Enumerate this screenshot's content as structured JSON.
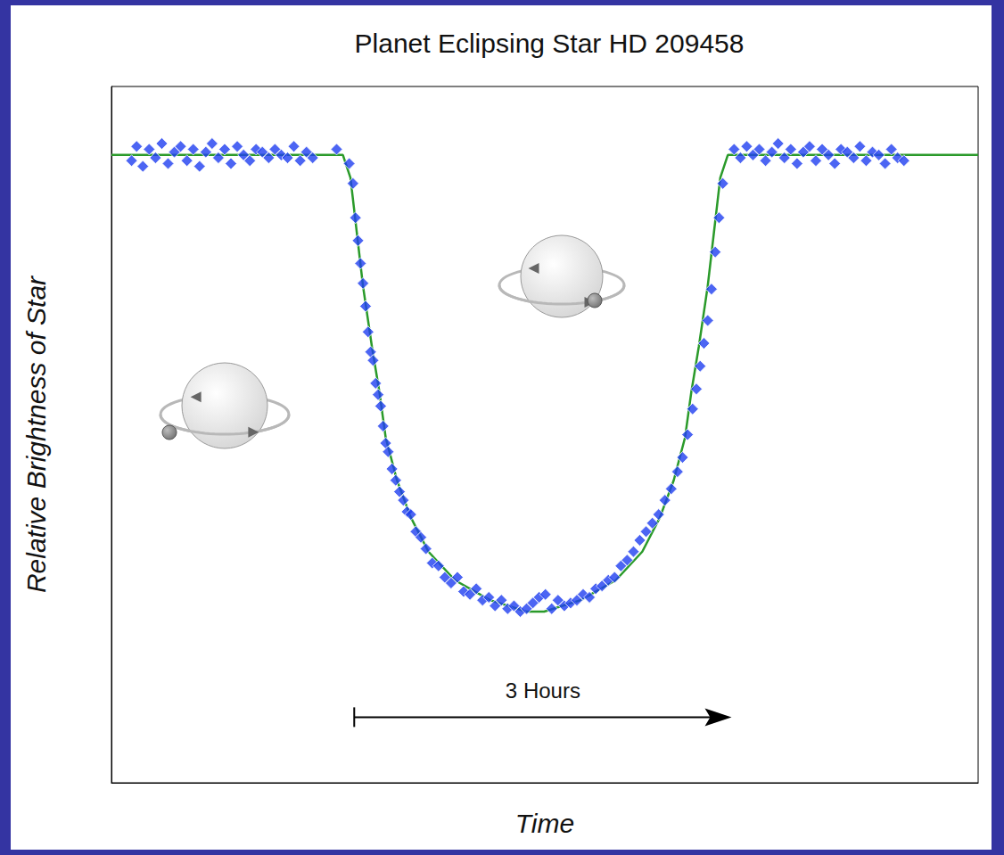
{
  "chart_data": {
    "type": "scatter",
    "title": "Planet Eclipsing Star HD 209458",
    "x_label": "Time",
    "y_label": "Relative Brightness of Star",
    "xlim": [
      0,
      6.89
    ],
    "ylim": [
      0.978,
      1.0024
    ],
    "grid": false,
    "tick_labels": false,
    "annotations": [
      {
        "text": "3 Hours",
        "x": [
          1.93,
          4.93
        ],
        "y": 0.9803
      }
    ],
    "series": [
      {
        "type": "line",
        "color": "#2a9a2a",
        "line_style": "solid",
        "x": [
          0,
          1.84,
          1.9,
          1.95,
          2.0,
          2.07,
          2.13,
          2.18,
          2.27,
          2.38,
          2.52,
          2.73,
          3.01,
          3.3,
          3.37,
          3.44,
          3.73,
          4.01,
          4.22,
          4.36,
          4.47,
          4.56,
          4.61,
          4.67,
          4.74,
          4.79,
          4.84,
          4.9,
          6.89
        ],
        "values": [
          1.0,
          1.0,
          0.9992,
          0.9973,
          0.9954,
          0.9933,
          0.9917,
          0.9901,
          0.9886,
          0.9873,
          0.9861,
          0.9851,
          0.9844,
          0.984,
          0.984,
          0.984,
          0.9844,
          0.9851,
          0.9861,
          0.9873,
          0.9886,
          0.9901,
          0.9917,
          0.9933,
          0.9954,
          0.9973,
          0.9992,
          1.0,
          1.0
        ]
      },
      {
        "type": "scatter",
        "color": "#1f3ff0",
        "marker": "diamond",
        "x": [
          0.16,
          0.2,
          0.25,
          0.3,
          0.35,
          0.4,
          0.45,
          0.5,
          0.55,
          0.6,
          0.65,
          0.7,
          0.75,
          0.8,
          0.85,
          0.9,
          0.95,
          1.0,
          1.05,
          1.1,
          1.15,
          1.2,
          1.25,
          1.3,
          1.35,
          1.4,
          1.45,
          1.5,
          1.55,
          1.6,
          1.79,
          1.89,
          1.92,
          1.94,
          1.96,
          1.98,
          2.0,
          2.02,
          2.04,
          2.06,
          2.08,
          2.1,
          2.12,
          2.14,
          2.16,
          2.18,
          2.2,
          2.23,
          2.26,
          2.29,
          2.32,
          2.35,
          2.38,
          2.42,
          2.46,
          2.5,
          2.55,
          2.6,
          2.65,
          2.7,
          2.75,
          2.8,
          2.85,
          2.9,
          2.95,
          3.0,
          3.05,
          3.1,
          3.15,
          3.2,
          3.25,
          3.3,
          3.35,
          3.4,
          3.45,
          3.5,
          3.55,
          3.6,
          3.65,
          3.7,
          3.75,
          3.8,
          3.85,
          3.9,
          3.95,
          4.0,
          4.05,
          4.1,
          4.15,
          4.2,
          4.25,
          4.3,
          4.35,
          4.4,
          4.45,
          4.5,
          4.54,
          4.58,
          4.62,
          4.65,
          4.68,
          4.71,
          4.74,
          4.77,
          4.8,
          4.83,
          4.86,
          4.95,
          5.0,
          5.05,
          5.1,
          5.15,
          5.2,
          5.25,
          5.3,
          5.35,
          5.4,
          5.45,
          5.5,
          5.55,
          5.6,
          5.65,
          5.7,
          5.75,
          5.8,
          5.85,
          5.9,
          5.95,
          6.0,
          6.05,
          6.1,
          6.15,
          6.2,
          6.25,
          6.3
        ],
        "values": [
          0.9998,
          1.0003,
          0.9996,
          1.0002,
          0.9999,
          1.0004,
          0.9997,
          1.0001,
          1.0003,
          0.9998,
          1.0002,
          0.9996,
          1.0001,
          1.0004,
          0.9999,
          1.0002,
          0.9997,
          1.0003,
          1.0,
          0.9998,
          1.0002,
          1.0001,
          0.9999,
          1.0002,
          1.0,
          0.9999,
          1.0003,
          0.9998,
          1.0001,
          0.9999,
          1.0002,
          0.9997,
          0.999,
          0.9978,
          0.997,
          0.9962,
          0.9955,
          0.9947,
          0.9938,
          0.9931,
          0.9928,
          0.992,
          0.9916,
          0.9912,
          0.9905,
          0.9899,
          0.9896,
          0.989,
          0.9886,
          0.9882,
          0.9879,
          0.9875,
          0.9874,
          0.9868,
          0.9866,
          0.9862,
          0.9857,
          0.9856,
          0.9852,
          0.985,
          0.9852,
          0.9847,
          0.9846,
          0.9848,
          0.9844,
          0.9845,
          0.9842,
          0.9844,
          0.9841,
          0.9842,
          0.984,
          0.9841,
          0.9843,
          0.9845,
          0.9846,
          0.9841,
          0.9844,
          0.9842,
          0.9843,
          0.9844,
          0.9846,
          0.9845,
          0.9848,
          0.9849,
          0.9851,
          0.9852,
          0.9856,
          0.9858,
          0.9861,
          0.9865,
          0.9868,
          0.9871,
          0.9874,
          0.9879,
          0.9883,
          0.9889,
          0.9894,
          0.9902,
          0.9911,
          0.9918,
          0.9926,
          0.9934,
          0.9942,
          0.9953,
          0.9966,
          0.9978,
          0.999,
          1.0002,
          0.9999,
          1.0003,
          1.0,
          1.0002,
          0.9998,
          1.0001,
          1.0004,
          0.9999,
          1.0002,
          0.9997,
          1.0001,
          1.0003,
          0.9998,
          1.0002,
          1.0,
          0.9997,
          1.0002,
          1.0001,
          0.9999,
          1.0003,
          0.9998,
          1.0001,
          1.0,
          0.9997,
          1.0002,
          0.9999,
          0.9998
        ]
      }
    ]
  }
}
